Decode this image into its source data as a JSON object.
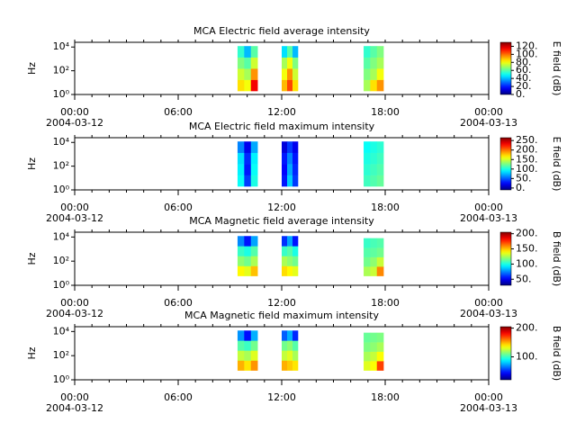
{
  "chart_data": [
    {
      "type": "spectrogram",
      "title": "MCA  Electric field average intensity",
      "y_label": "Hz",
      "colorbar_label": "E field (dB)",
      "colormap": "jet",
      "log_y": true,
      "xlim": [
        0,
        24
      ],
      "xticks": [
        {
          "value": 0,
          "label": "00:00"
        },
        {
          "value": 6,
          "label": "06:00"
        },
        {
          "value": 12,
          "label": "12:00"
        },
        {
          "value": 18,
          "label": "18:00"
        },
        {
          "value": 24,
          "label": "00:00"
        }
      ],
      "date_labels": [
        {
          "value": 0,
          "label": "2004-03-12"
        },
        {
          "value": 24,
          "label": "2004-03-13"
        }
      ],
      "ylim": [
        1,
        25000
      ],
      "yticks": [
        {
          "value": 1,
          "label": "10⁰"
        },
        {
          "value": 100,
          "label": "10²"
        },
        {
          "value": 10000,
          "label": "10⁴"
        }
      ],
      "clim": [
        0,
        130
      ],
      "cticks": [
        {
          "value": 0,
          "label": "0."
        },
        {
          "value": 20,
          "label": "20."
        },
        {
          "value": 40,
          "label": "40."
        },
        {
          "value": 60,
          "label": "60."
        },
        {
          "value": 80,
          "label": "80."
        },
        {
          "value": 100,
          "label": "100."
        },
        {
          "value": 120,
          "label": "120."
        }
      ],
      "segments": [
        {
          "start": 9.44,
          "end": 10.6,
          "fmin": 2,
          "fmax": 12000,
          "values": [
            [
              85,
              80,
              115
            ],
            [
              75,
              70,
              95
            ],
            [
              65,
              60,
              75
            ],
            [
              55,
              40,
              60
            ]
          ]
        },
        {
          "start": 12.0,
          "end": 12.94,
          "fmin": 2,
          "fmax": 12000,
          "values": [
            [
              90,
              105,
              85
            ],
            [
              80,
              95,
              75
            ],
            [
              70,
              80,
              65
            ],
            [
              45,
              60,
              40
            ]
          ]
        },
        {
          "start": 16.75,
          "end": 17.9,
          "fmin": 2,
          "fmax": 12000,
          "values": [
            [
              70,
              85,
              95
            ],
            [
              65,
              70,
              80
            ],
            [
              60,
              65,
              70
            ],
            [
              55,
              60,
              65
            ]
          ]
        }
      ]
    },
    {
      "type": "spectrogram",
      "title": "MCA  Electric field maximum intensity",
      "y_label": "Hz",
      "colorbar_label": "E field (dB)",
      "colormap": "jet",
      "log_y": true,
      "xlim": [
        0,
        24
      ],
      "xticks": [
        {
          "value": 0,
          "label": "00:00"
        },
        {
          "value": 6,
          "label": "06:00"
        },
        {
          "value": 12,
          "label": "12:00"
        },
        {
          "value": 18,
          "label": "18:00"
        },
        {
          "value": 24,
          "label": "00:00"
        }
      ],
      "date_labels": [
        {
          "value": 0,
          "label": "2004-03-12"
        },
        {
          "value": 24,
          "label": "2004-03-13"
        }
      ],
      "ylim": [
        1,
        25000
      ],
      "yticks": [
        {
          "value": 1,
          "label": "10⁰"
        },
        {
          "value": 100,
          "label": "10²"
        },
        {
          "value": 10000,
          "label": "10⁴"
        }
      ],
      "clim": [
        -10,
        265
      ],
      "cticks": [
        {
          "value": 0,
          "label": "0."
        },
        {
          "value": 50,
          "label": "50."
        },
        {
          "value": 100,
          "label": "100."
        },
        {
          "value": 150,
          "label": "150."
        },
        {
          "value": 200,
          "label": "200."
        },
        {
          "value": 250,
          "label": "250."
        }
      ],
      "segments": [
        {
          "start": 9.44,
          "end": 10.6,
          "fmin": 2,
          "fmax": 12000,
          "values": [
            [
              95,
              40,
              100
            ],
            [
              90,
              30,
              95
            ],
            [
              85,
              35,
              90
            ],
            [
              60,
              20,
              70
            ]
          ]
        },
        {
          "start": 12.0,
          "end": 12.94,
          "fmin": 2,
          "fmax": 12000,
          "values": [
            [
              30,
              80,
              40
            ],
            [
              25,
              70,
              35
            ],
            [
              30,
              60,
              30
            ],
            [
              15,
              40,
              20
            ]
          ]
        },
        {
          "start": 16.75,
          "end": 17.9,
          "fmin": 2,
          "fmax": 12000,
          "values": [
            [
              110,
              115,
              120
            ],
            [
              105,
              110,
              115
            ],
            [
              100,
              105,
              110
            ],
            [
              95,
              100,
              105
            ]
          ]
        }
      ]
    },
    {
      "type": "spectrogram",
      "title": "MCA  Magnetic field average intensity",
      "y_label": "Hz",
      "colorbar_label": "B field (dB)",
      "colormap": "jet",
      "log_y": true,
      "xlim": [
        0,
        24
      ],
      "xticks": [
        {
          "value": 0,
          "label": "00:00"
        },
        {
          "value": 6,
          "label": "06:00"
        },
        {
          "value": 12,
          "label": "12:00"
        },
        {
          "value": 18,
          "label": "18:00"
        },
        {
          "value": 24,
          "label": "00:00"
        }
      ],
      "date_labels": [
        {
          "value": 0,
          "label": "2004-03-12"
        },
        {
          "value": 24,
          "label": "2004-03-13"
        }
      ],
      "ylim": [
        1,
        25000
      ],
      "yticks": [
        {
          "value": 1,
          "label": "10⁰"
        },
        {
          "value": 100,
          "label": "10²"
        },
        {
          "value": 10000,
          "label": "10⁴"
        }
      ],
      "clim": [
        30,
        205
      ],
      "cticks": [
        {
          "value": 50,
          "label": "50."
        },
        {
          "value": 100,
          "label": "100."
        },
        {
          "value": 150,
          "label": "150."
        },
        {
          "value": 200,
          "label": "200."
        }
      ],
      "segments": [
        {
          "start": 9.44,
          "end": 10.6,
          "fmin": 6,
          "fmax": 12000,
          "values": [
            [
              140,
              135,
              150
            ],
            [
              120,
              115,
              125
            ],
            [
              105,
              100,
              110
            ],
            [
              75,
              55,
              80
            ]
          ]
        },
        {
          "start": 12.0,
          "end": 12.94,
          "fmin": 6,
          "fmax": 12000,
          "values": [
            [
              145,
              140,
              135
            ],
            [
              125,
              120,
              115
            ],
            [
              105,
              110,
              100
            ],
            [
              60,
              80,
              55
            ]
          ]
        },
        {
          "start": 16.75,
          "end": 17.9,
          "fmin": 6,
          "fmax": 8000,
          "values": [
            [
              125,
              130,
              160
            ],
            [
              115,
              120,
              130
            ],
            [
              110,
              112,
              115
            ],
            [
              105,
              108,
              110
            ]
          ]
        }
      ]
    },
    {
      "type": "spectrogram",
      "title": "MCA  Magnetic field maximum intensity",
      "y_label": "Hz",
      "colorbar_label": "B field (dB)",
      "colormap": "jet",
      "log_y": true,
      "xlim": [
        0,
        24
      ],
      "xticks": [
        {
          "value": 0,
          "label": "00:00"
        },
        {
          "value": 6,
          "label": "06:00"
        },
        {
          "value": 12,
          "label": "12:00"
        },
        {
          "value": 18,
          "label": "18:00"
        },
        {
          "value": 24,
          "label": "00:00"
        }
      ],
      "date_labels": [
        {
          "value": 0,
          "label": "2004-03-12"
        },
        {
          "value": 24,
          "label": "2004-03-13"
        }
      ],
      "ylim": [
        1,
        25000
      ],
      "yticks": [
        {
          "value": 1,
          "label": "10⁰"
        },
        {
          "value": 100,
          "label": "10²"
        },
        {
          "value": 10000,
          "label": "10⁴"
        }
      ],
      "clim": [
        20,
        205
      ],
      "cticks": [
        {
          "value": 100,
          "label": "100."
        },
        {
          "value": 200,
          "label": "200."
        }
      ],
      "segments": [
        {
          "start": 9.44,
          "end": 10.6,
          "fmin": 6,
          "fmax": 12000,
          "values": [
            [
              150,
              140,
              155
            ],
            [
              125,
              120,
              130
            ],
            [
              105,
              100,
              110
            ],
            [
              70,
              45,
              75
            ]
          ]
        },
        {
          "start": 12.0,
          "end": 12.94,
          "fmin": 6,
          "fmax": 12000,
          "values": [
            [
              150,
              145,
              140
            ],
            [
              125,
              130,
              120
            ],
            [
              110,
              115,
              105
            ],
            [
              60,
              75,
              50
            ]
          ]
        },
        {
          "start": 16.75,
          "end": 17.9,
          "fmin": 6,
          "fmax": 8000,
          "values": [
            [
              130,
              135,
              170
            ],
            [
              120,
              125,
              135
            ],
            [
              112,
              115,
              120
            ],
            [
              108,
              110,
              112
            ]
          ]
        }
      ]
    }
  ]
}
